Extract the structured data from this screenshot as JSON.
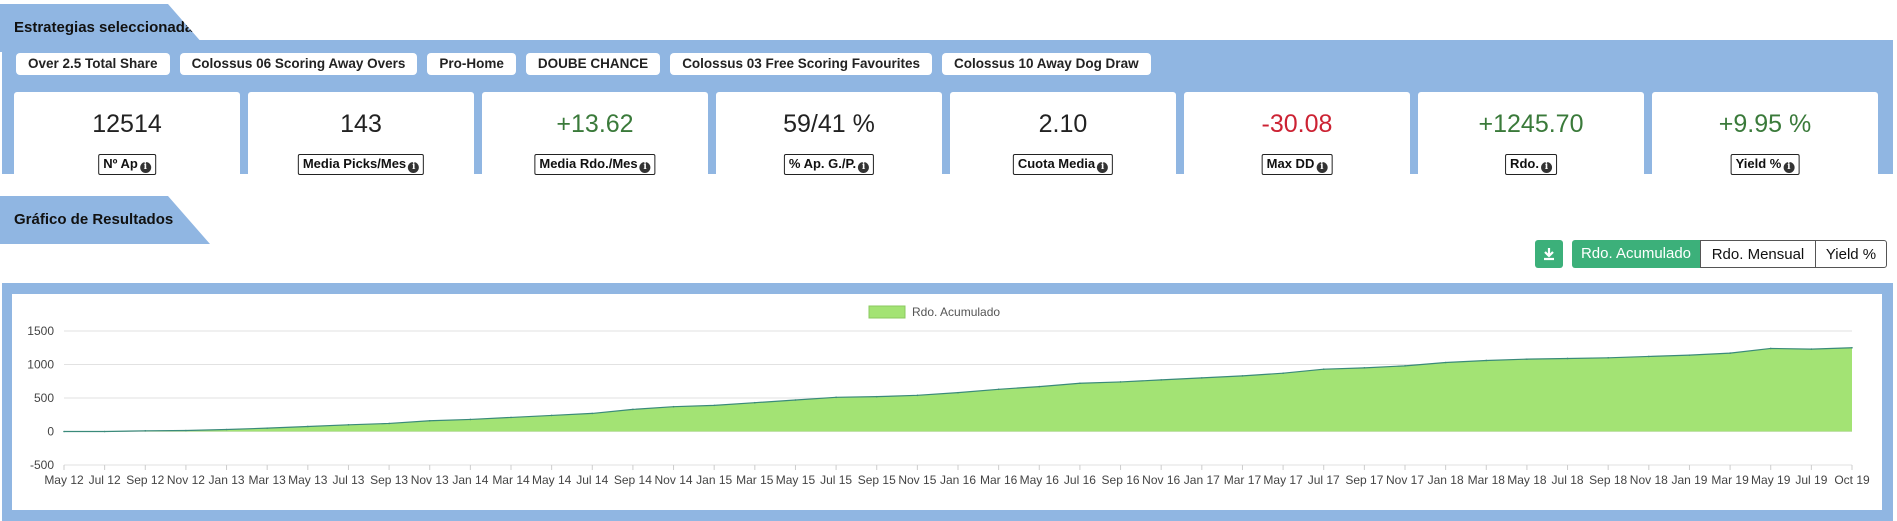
{
  "section1": {
    "title": "Estrategias seleccionadas:"
  },
  "strategies": [
    "Over 2.5 Total Share",
    "Colossus 06 Scoring Away Overs",
    "Pro-Home",
    "DOUBE CHANCE",
    "Colossus 03 Free Scoring Favourites",
    "Colossus 10 Away Dog Draw"
  ],
  "stats": [
    {
      "value": "12514",
      "label": "Nº Ap",
      "tone": "neutral"
    },
    {
      "value": "143",
      "label": "Media Picks/Mes",
      "tone": "neutral"
    },
    {
      "value": "+13.62",
      "label": "Media Rdo./Mes",
      "tone": "pos"
    },
    {
      "value": "59/41 %",
      "label": "% Ap. G./P.",
      "tone": "neutral"
    },
    {
      "value": "2.10",
      "label": "Cuota Media",
      "tone": "neutral"
    },
    {
      "value": "-30.08",
      "label": "Max DD",
      "tone": "neg"
    },
    {
      "value": "+1245.70",
      "label": "Rdo.",
      "tone": "pos"
    },
    {
      "value": "+9.95 %",
      "label": "Yield %",
      "tone": "pos"
    }
  ],
  "section2": {
    "title": "Gráfico de Resultados"
  },
  "chart_buttons": {
    "download_icon": "download-icon",
    "acumulado": "Rdo. Acumulado",
    "mensual": "Rdo. Mensual",
    "yield": "Yield %"
  },
  "colors": {
    "panel": "#90b6e2",
    "accent": "#3cb07a",
    "area": "#a3e374",
    "positive": "#3a7a3a",
    "negative": "#cc2233"
  },
  "chart_data": {
    "type": "area",
    "legend": "Rdo. Acumulado",
    "legend_position": "top-center",
    "grid": true,
    "ylim": [
      -500,
      1500
    ],
    "yticks": [
      1500,
      1000,
      500,
      0,
      -500
    ],
    "xticks": [
      "May 12",
      "Jul 12",
      "Sep 12",
      "Nov 12",
      "Jan 13",
      "Mar 13",
      "May 13",
      "Jul 13",
      "Sep 13",
      "Nov 13",
      "Jan 14",
      "Mar 14",
      "May 14",
      "Jul 14",
      "Sep 14",
      "Nov 14",
      "Jan 15",
      "Mar 15",
      "May 15",
      "Jul 15",
      "Sep 15",
      "Nov 15",
      "Jan 16",
      "Mar 16",
      "May 16",
      "Jul 16",
      "Sep 16",
      "Nov 16",
      "Jan 17",
      "Mar 17",
      "May 17",
      "Jul 17",
      "Sep 17",
      "Nov 17",
      "Jan 18",
      "Mar 18",
      "May 18",
      "Jul 18",
      "Sep 18",
      "Nov 18",
      "Jan 19",
      "Mar 19",
      "May 19",
      "Jul 19",
      "Oct 19"
    ],
    "x": [
      "May 12",
      "Jul 12",
      "Sep 12",
      "Nov 12",
      "Jan 13",
      "Mar 13",
      "May 13",
      "Jul 13",
      "Sep 13",
      "Nov 13",
      "Jan 14",
      "Mar 14",
      "May 14",
      "Jul 14",
      "Sep 14",
      "Nov 14",
      "Jan 15",
      "Mar 15",
      "May 15",
      "Jul 15",
      "Sep 15",
      "Nov 15",
      "Jan 16",
      "Mar 16",
      "May 16",
      "Jul 16",
      "Sep 16",
      "Nov 16",
      "Jan 17",
      "Mar 17",
      "May 17",
      "Jul 17",
      "Sep 17",
      "Nov 17",
      "Jan 18",
      "Mar 18",
      "May 18",
      "Jul 18",
      "Sep 18",
      "Nov 18",
      "Jan 19",
      "Mar 19",
      "May 19",
      "Jul 19",
      "Oct 19"
    ],
    "values": [
      0,
      0,
      10,
      15,
      30,
      50,
      75,
      100,
      120,
      160,
      180,
      210,
      240,
      270,
      330,
      370,
      390,
      430,
      470,
      510,
      520,
      540,
      580,
      630,
      670,
      720,
      740,
      770,
      800,
      830,
      870,
      930,
      950,
      980,
      1030,
      1060,
      1080,
      1090,
      1100,
      1120,
      1140,
      1170,
      1240,
      1230,
      1250
    ]
  }
}
